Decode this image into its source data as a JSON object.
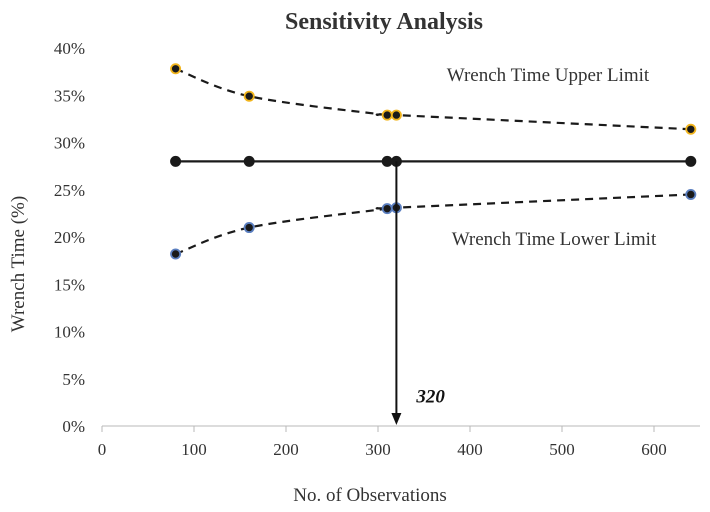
{
  "chart_data": {
    "type": "line",
    "title": "Sensitivity Analysis",
    "xlabel": "No. of Observations",
    "ylabel": "Wrench Time (%)",
    "xlim": [
      0,
      650
    ],
    "ylim": [
      0,
      0.4
    ],
    "xticks": [
      0,
      100,
      200,
      300,
      400,
      500,
      600
    ],
    "yticks": [
      0,
      0.05,
      0.1,
      0.15,
      0.2,
      0.25,
      0.3,
      0.35,
      0.4
    ],
    "xtick_labels": [
      "0",
      "100",
      "200",
      "300",
      "400",
      "500",
      "600"
    ],
    "ytick_labels": [
      "0%",
      "5%",
      "10%",
      "15%",
      "20%",
      "25%",
      "30%",
      "35%",
      "40%"
    ],
    "grid": false,
    "series": [
      {
        "name": "Wrench Time Upper Limit",
        "style": "dashed",
        "marker_fill": "#1a1a1a",
        "marker_edge": "#f2b51d",
        "x": [
          80,
          160,
          310,
          320,
          640
        ],
        "y": [
          0.378,
          0.349,
          0.329,
          0.329,
          0.314
        ]
      },
      {
        "name": "",
        "style": "solid",
        "marker_fill": "#1a1a1a",
        "marker_edge": "#1a1a1a",
        "x": [
          80,
          160,
          310,
          320,
          640
        ],
        "y": [
          0.28,
          0.28,
          0.28,
          0.28,
          0.28
        ]
      },
      {
        "name": "Wrench Time Lower Limit",
        "style": "dashed",
        "marker_fill": "#1a1a1a",
        "marker_edge": "#5b7fc0",
        "x": [
          80,
          160,
          310,
          320,
          640
        ],
        "y": [
          0.182,
          0.21,
          0.23,
          0.231,
          0.245
        ]
      }
    ],
    "annotations": {
      "upper_label": "Wrench Time Upper Limit",
      "lower_label": "Wrench Time Lower Limit",
      "arrow_x": 320,
      "arrow_label": "320"
    }
  }
}
